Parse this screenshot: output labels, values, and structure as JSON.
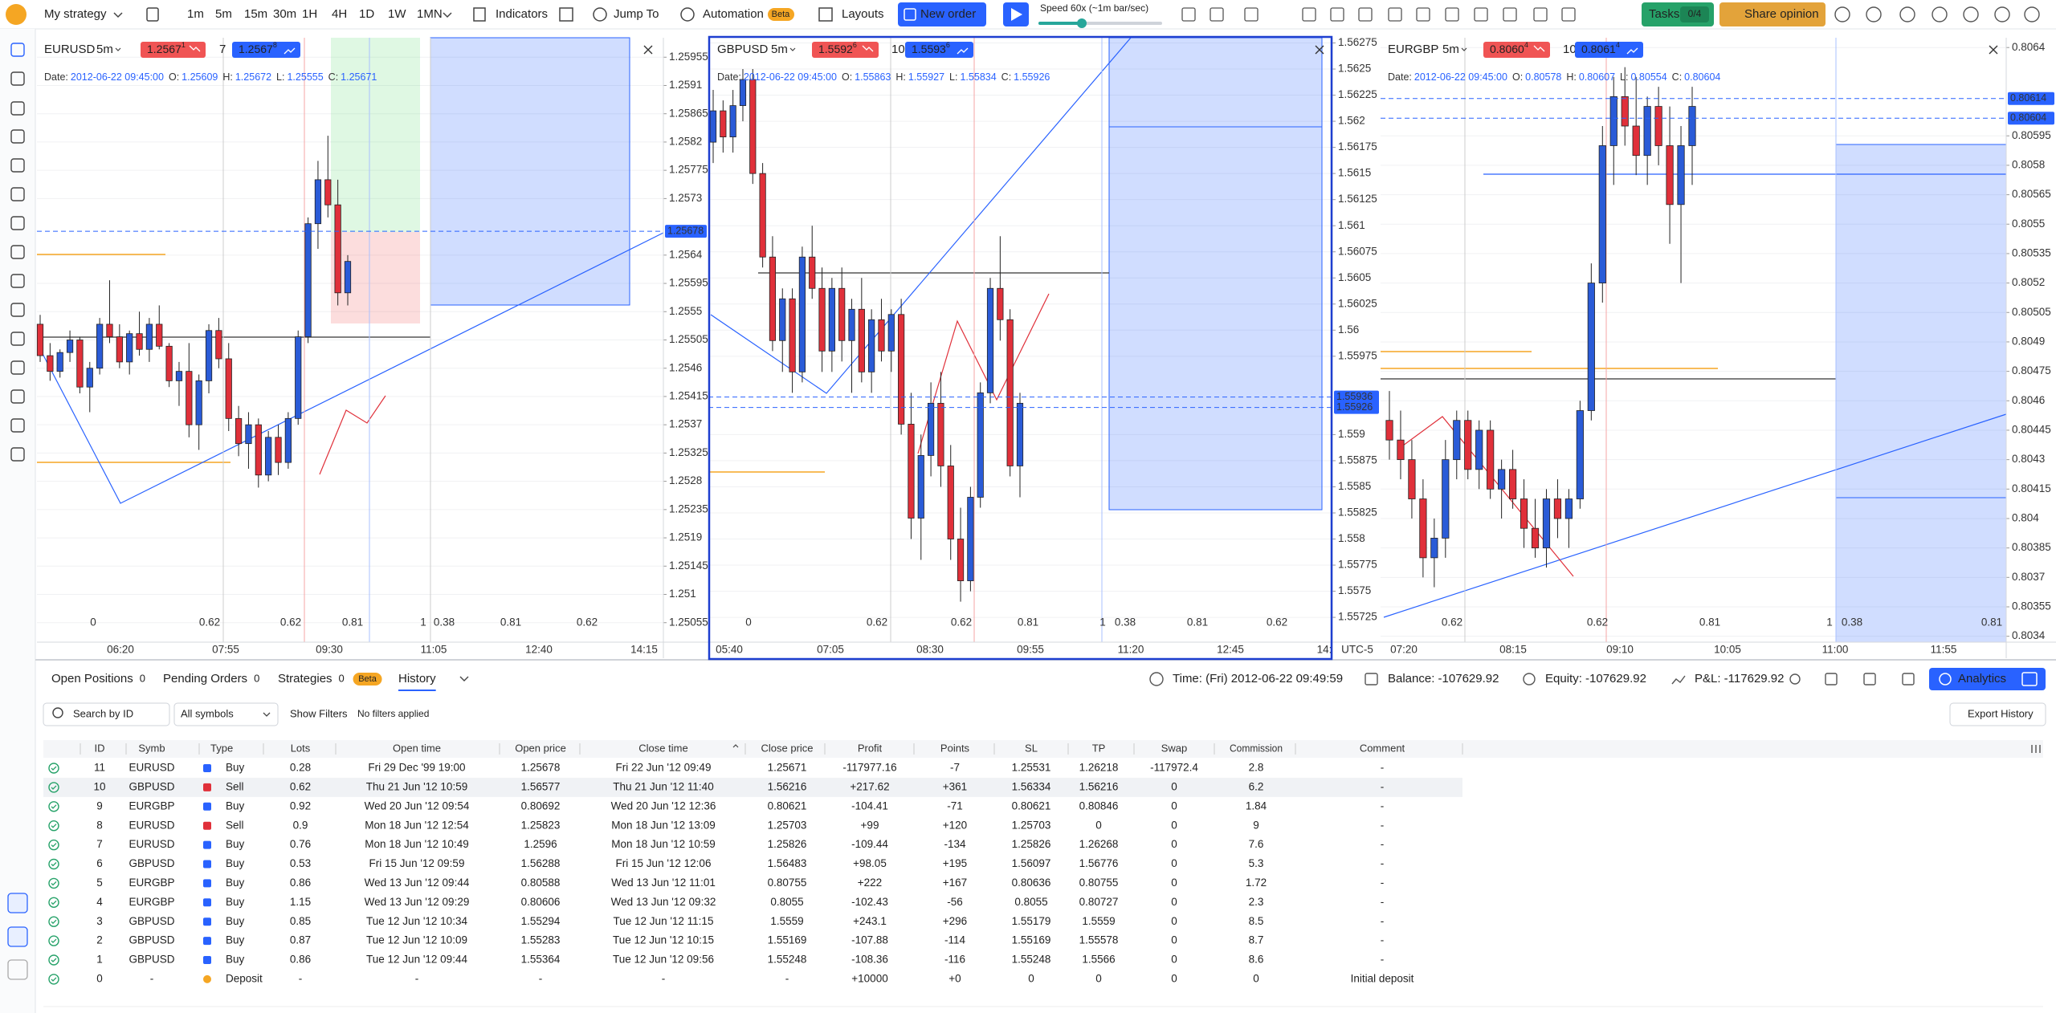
{
  "toolbar": {
    "strategy": "My strategy",
    "timeframes": [
      "1m",
      "5m",
      "15m",
      "30m",
      "1H",
      "4H",
      "1D",
      "1W",
      "1MN"
    ],
    "active_timeframe_index": 1,
    "indicators": "Indicators",
    "jump_to": "Jump To",
    "automation": "Automation",
    "beta": "Beta",
    "layouts": "Layouts",
    "new_order": "New order",
    "speed": "Speed 60x (~1m bar/sec)",
    "tasks": "Tasks",
    "tasks_count": "0/4",
    "share": "Share opinion"
  },
  "charts": [
    {
      "symbol": "EURUSD",
      "timeframe": "5m",
      "lot": "7",
      "sell": {
        "main": "1.2567",
        "pip": "1"
      },
      "buy": {
        "main": "1.2567",
        "pip": "8"
      },
      "ohlc": [
        [
          "Date:",
          "2012-06-22 09:45:00"
        ],
        [
          "O:",
          "1.25609"
        ],
        [
          "H:",
          "1.25672"
        ],
        [
          "L:",
          "1.25555"
        ],
        [
          "C:",
          "1.25671"
        ]
      ],
      "ylim": [
        1.25024,
        1.25986
      ],
      "yticks": [
        1.25955,
        1.2591,
        1.25865,
        1.2582,
        1.25775,
        1.2573,
        1.2564,
        1.25595,
        1.2555,
        1.25505,
        1.2546,
        1.25415,
        1.2537,
        1.25325,
        1.2528,
        1.25235,
        1.2519,
        1.25145,
        1.251,
        1.25055
      ],
      "price_labels": [
        1.25678
      ],
      "times": [
        "06:20",
        "07:55",
        "09:30",
        "11:05",
        "12:40",
        "14:15"
      ],
      "levels": [
        {
          "text": "0",
          "color": "#555"
        },
        {
          "text": "0.62",
          "color": "#e0303a"
        },
        {
          "text": "0.62",
          "color": "#e0303a"
        },
        {
          "text": "0.81",
          "color": "#2962ff"
        },
        {
          "text": "1",
          "color": "#2962ff"
        },
        {
          "text": "0.38",
          "color": "#777"
        },
        {
          "text": "0.81",
          "color": "#f59e0b"
        },
        {
          "text": "0.62",
          "color": "#777"
        }
      ],
      "candles": [
        [
          1.2553,
          1.25545,
          1.2547,
          1.2548
        ],
        [
          1.2548,
          1.255,
          1.2544,
          1.25455
        ],
        [
          1.25455,
          1.2549,
          1.25445,
          1.25485
        ],
        [
          1.25485,
          1.2552,
          1.2547,
          1.25505
        ],
        [
          1.25505,
          1.2551,
          1.2542,
          1.2543
        ],
        [
          1.2543,
          1.2547,
          1.2539,
          1.2546
        ],
        [
          1.2546,
          1.2554,
          1.2545,
          1.2553
        ],
        [
          1.2553,
          1.256,
          1.255,
          1.2551
        ],
        [
          1.2551,
          1.2553,
          1.2546,
          1.2547
        ],
        [
          1.2547,
          1.2552,
          1.2545,
          1.25515
        ],
        [
          1.25515,
          1.2555,
          1.2548,
          1.2549
        ],
        [
          1.2549,
          1.2554,
          1.2547,
          1.2553
        ],
        [
          1.2553,
          1.2556,
          1.2549,
          1.25495
        ],
        [
          1.25495,
          1.255,
          1.2543,
          1.2544
        ],
        [
          1.2544,
          1.2547,
          1.254,
          1.25455
        ],
        [
          1.25455,
          1.255,
          1.2535,
          1.2537
        ],
        [
          1.2537,
          1.2545,
          1.2533,
          1.2544
        ],
        [
          1.2544,
          1.2553,
          1.2542,
          1.2552
        ],
        [
          1.2552,
          1.2554,
          1.2546,
          1.25475
        ],
        [
          1.25475,
          1.255,
          1.2536,
          1.2538
        ],
        [
          1.2538,
          1.254,
          1.2532,
          1.2534
        ],
        [
          1.2534,
          1.2539,
          1.253,
          1.2537
        ],
        [
          1.2537,
          1.2538,
          1.2527,
          1.2529
        ],
        [
          1.2529,
          1.2536,
          1.2528,
          1.2535
        ],
        [
          1.2535,
          1.2537,
          1.2529,
          1.2531
        ],
        [
          1.2531,
          1.2539,
          1.253,
          1.2538
        ],
        [
          1.2538,
          1.2552,
          1.2537,
          1.2551
        ],
        [
          1.2551,
          1.257,
          1.255,
          1.2569
        ],
        [
          1.2569,
          1.2579,
          1.2565,
          1.2576
        ],
        [
          1.2576,
          1.2583,
          1.257,
          1.2572
        ],
        [
          1.2572,
          1.2576,
          1.2556,
          1.2558
        ],
        [
          1.2558,
          1.2564,
          1.2556,
          1.2563
        ]
      ]
    },
    {
      "symbol": "GBPUSD",
      "timeframe": "5m",
      "lot": "10",
      "sell": {
        "main": "1.5592",
        "pip": "6"
      },
      "buy": {
        "main": "1.5593",
        "pip": "6"
      },
      "ohlc": [
        [
          "Date:",
          "2012-06-22 09:45:00"
        ],
        [
          "O:",
          "1.55863"
        ],
        [
          "H:",
          "1.55927"
        ],
        [
          "L:",
          "1.55834"
        ],
        [
          "C:",
          "1.55926"
        ]
      ],
      "ylim": [
        1.5570125,
        1.5628
      ],
      "yticks": [
        1.56275,
        1.5625,
        1.56225,
        1.562,
        1.56175,
        1.5615,
        1.56125,
        1.561,
        1.56075,
        1.5605,
        1.56025,
        1.56,
        1.55975,
        1.559,
        1.55875,
        1.5585,
        1.55825,
        1.558,
        1.55775,
        1.5575,
        1.55725
      ],
      "price_labels": [
        1.55936,
        1.55926
      ],
      "times": [
        "05:40",
        "07:05",
        "08:30",
        "09:55",
        "11:20",
        "12:45",
        "14:"
      ],
      "timezone": "UTC-5",
      "levels": [
        {
          "text": "0",
          "color": "#555"
        },
        {
          "text": "0.62",
          "color": "#777"
        },
        {
          "text": "0.62",
          "color": "#e0303a"
        },
        {
          "text": "0.81",
          "color": "#2962ff"
        },
        {
          "text": "1",
          "color": "#2962ff"
        },
        {
          "text": "0.38",
          "color": "#777"
        },
        {
          "text": "0.81",
          "color": "#f59e0b"
        },
        {
          "text": "0.62",
          "color": "#777"
        }
      ],
      "candles": [
        [
          1.5618,
          1.5623,
          1.5616,
          1.5621
        ],
        [
          1.5621,
          1.5622,
          1.5617,
          1.56185
        ],
        [
          1.56185,
          1.5623,
          1.5617,
          1.56215
        ],
        [
          1.56215,
          1.5625,
          1.562,
          1.5624
        ],
        [
          1.5624,
          1.5625,
          1.5614,
          1.5615
        ],
        [
          1.5615,
          1.5616,
          1.5606,
          1.5607
        ],
        [
          1.5607,
          1.5609,
          1.5598,
          1.5599
        ],
        [
          1.5599,
          1.5604,
          1.5596,
          1.5603
        ],
        [
          1.5603,
          1.5604,
          1.5594,
          1.5596
        ],
        [
          1.5596,
          1.5608,
          1.5595,
          1.5607
        ],
        [
          1.5607,
          1.561,
          1.5603,
          1.5604
        ],
        [
          1.5604,
          1.5606,
          1.5596,
          1.5598
        ],
        [
          1.5598,
          1.5605,
          1.5596,
          1.5604
        ],
        [
          1.5604,
          1.5606,
          1.5597,
          1.5599
        ],
        [
          1.5599,
          1.5603,
          1.5594,
          1.5602
        ],
        [
          1.5602,
          1.5605,
          1.5595,
          1.5596
        ],
        [
          1.5596,
          1.5602,
          1.5594,
          1.5601
        ],
        [
          1.5601,
          1.5603,
          1.5597,
          1.5598
        ],
        [
          1.5598,
          1.5602,
          1.5596,
          1.56015
        ],
        [
          1.56015,
          1.5603,
          1.559,
          1.5591
        ],
        [
          1.5591,
          1.5594,
          1.558,
          1.5582
        ],
        [
          1.5582,
          1.559,
          1.5578,
          1.5588
        ],
        [
          1.5588,
          1.5595,
          1.5586,
          1.5593
        ],
        [
          1.5593,
          1.5596,
          1.5585,
          1.5587
        ],
        [
          1.5587,
          1.5589,
          1.5578,
          1.558
        ],
        [
          1.558,
          1.5583,
          1.5574,
          1.5576
        ],
        [
          1.5576,
          1.5585,
          1.5575,
          1.5584
        ],
        [
          1.5584,
          1.5595,
          1.5583,
          1.5594
        ],
        [
          1.5594,
          1.5605,
          1.5593,
          1.5604
        ],
        [
          1.5604,
          1.5609,
          1.5599,
          1.5601
        ],
        [
          1.5601,
          1.5602,
          1.5586,
          1.5587
        ],
        [
          1.5587,
          1.5594,
          1.5584,
          1.5593
        ]
      ]
    },
    {
      "symbol": "EURGBP",
      "timeframe": "5m",
      "lot": "10",
      "sell": {
        "main": "0.8060",
        "pip": "4"
      },
      "buy": {
        "main": "0.8061",
        "pip": "4"
      },
      "ohlc": [
        [
          "Date:",
          "2012-06-22 09:45:00"
        ],
        [
          "O:",
          "0.80578"
        ],
        [
          "H:",
          "0.80607"
        ],
        [
          "L:",
          "0.80554"
        ],
        [
          "C:",
          "0.80604"
        ]
      ],
      "ylim": [
        0.80337,
        0.80645
      ],
      "yticks": [
        0.8064,
        0.80595,
        0.8058,
        0.80565,
        0.8055,
        0.80535,
        0.8052,
        0.80505,
        0.8049,
        0.80475,
        0.8046,
        0.80445,
        0.8043,
        0.80415,
        0.804,
        0.80385,
        0.8037,
        0.80355,
        0.8034
      ],
      "price_labels": [
        0.80614,
        0.80604
      ],
      "times": [
        "07:20",
        "08:15",
        "09:10",
        "10:05",
        "11:00",
        "11:55"
      ],
      "levels": [
        {
          "text": "0.62",
          "color": "#777"
        },
        {
          "text": "0.62",
          "color": "#e0303a"
        },
        {
          "text": "0.81",
          "color": "#2962ff"
        },
        {
          "text": "1",
          "color": "#2962ff"
        },
        {
          "text": "0.38",
          "color": "#777"
        },
        {
          "text": "0.81",
          "color": "#f59e0b"
        }
      ],
      "candles": [
        [
          0.8045,
          0.80465,
          0.8043,
          0.8044
        ],
        [
          0.8044,
          0.80455,
          0.8042,
          0.8043
        ],
        [
          0.8043,
          0.8044,
          0.804,
          0.8041
        ],
        [
          0.8041,
          0.8042,
          0.8037,
          0.8038
        ],
        [
          0.8038,
          0.804,
          0.80365,
          0.8039
        ],
        [
          0.8039,
          0.8044,
          0.8038,
          0.8043
        ],
        [
          0.8043,
          0.80455,
          0.8042,
          0.8045
        ],
        [
          0.8045,
          0.80455,
          0.8042,
          0.80425
        ],
        [
          0.80425,
          0.8045,
          0.80415,
          0.80445
        ],
        [
          0.80445,
          0.8045,
          0.8041,
          0.80415
        ],
        [
          0.80415,
          0.8043,
          0.804,
          0.80425
        ],
        [
          0.80425,
          0.80435,
          0.80405,
          0.8041
        ],
        [
          0.8041,
          0.8042,
          0.80385,
          0.80395
        ],
        [
          0.80395,
          0.8041,
          0.8038,
          0.80385
        ],
        [
          0.80385,
          0.80415,
          0.80375,
          0.8041
        ],
        [
          0.8041,
          0.8042,
          0.8039,
          0.804
        ],
        [
          0.804,
          0.80415,
          0.80385,
          0.8041
        ],
        [
          0.8041,
          0.8046,
          0.80405,
          0.80455
        ],
        [
          0.80455,
          0.8053,
          0.8045,
          0.8052
        ],
        [
          0.8052,
          0.806,
          0.8051,
          0.8059
        ],
        [
          0.8059,
          0.80625,
          0.8057,
          0.80615
        ],
        [
          0.80615,
          0.8063,
          0.8059,
          0.806
        ],
        [
          0.806,
          0.80625,
          0.80575,
          0.80585
        ],
        [
          0.80585,
          0.80615,
          0.8057,
          0.8061
        ],
        [
          0.8061,
          0.8062,
          0.8058,
          0.8059
        ],
        [
          0.8059,
          0.8061,
          0.8054,
          0.8056
        ],
        [
          0.8056,
          0.806,
          0.8052,
          0.8059
        ],
        [
          0.8059,
          0.8062,
          0.8057,
          0.8061
        ]
      ]
    }
  ],
  "tabs": [
    {
      "label": "Open Positions",
      "count": "0"
    },
    {
      "label": "Pending Orders",
      "count": "0"
    },
    {
      "label": "Strategies",
      "count": "0",
      "badge": "Beta"
    },
    {
      "label": "History"
    }
  ],
  "status": {
    "time": "Time: (Fri) 2012-06-22 09:49:59",
    "balance": "Balance: -107629.92",
    "equity": "Equity: -107629.92",
    "pnl": "P&L: -117629.92",
    "analytics": "Analytics"
  },
  "filters": {
    "search": "Search by ID",
    "symbols": "All symbols",
    "show": "Show Filters",
    "none": "No filters applied",
    "export": "Export History"
  },
  "table": {
    "columns": [
      "ID",
      "Symb",
      "Type",
      "Lots",
      "Open time",
      "Open price",
      "Close time",
      "Close price",
      "Profit",
      "Points",
      "SL",
      "TP",
      "Swap",
      "Commission",
      "Comment"
    ],
    "rows": [
      [
        "11",
        "EURUSD",
        "Buy",
        "0.28",
        "Fri 29 Dec '99 19:00",
        "1.25678",
        "Fri 22 Jun '12 09:49",
        "1.25671",
        "-117977.16",
        "-7",
        "1.25531",
        "1.26218",
        "-117972.4",
        "2.8",
        "-"
      ],
      [
        "10",
        "GBPUSD",
        "Sell",
        "0.62",
        "Thu 21 Jun '12 10:59",
        "1.56577",
        "Thu 21 Jun '12 11:40",
        "1.56216",
        "+217.62",
        "+361",
        "1.56334",
        "1.56216",
        "0",
        "6.2",
        "-"
      ],
      [
        "9",
        "EURGBP",
        "Buy",
        "0.92",
        "Wed 20 Jun '12 09:54",
        "0.80692",
        "Wed 20 Jun '12 12:36",
        "0.80621",
        "-104.41",
        "-71",
        "0.80621",
        "0.80846",
        "0",
        "1.84",
        "-"
      ],
      [
        "8",
        "EURUSD",
        "Sell",
        "0.9",
        "Mon 18 Jun '12 12:54",
        "1.25823",
        "Mon 18 Jun '12 13:09",
        "1.25703",
        "+99",
        "+120",
        "1.25703",
        "0",
        "0",
        "9",
        "-"
      ],
      [
        "7",
        "EURUSD",
        "Buy",
        "0.76",
        "Mon 18 Jun '12 10:49",
        "1.2596",
        "Mon 18 Jun '12 10:59",
        "1.25826",
        "-109.44",
        "-134",
        "1.25826",
        "1.26268",
        "0",
        "7.6",
        "-"
      ],
      [
        "6",
        "GBPUSD",
        "Buy",
        "0.53",
        "Fri 15 Jun '12 09:59",
        "1.56288",
        "Fri 15 Jun '12 12:06",
        "1.56483",
        "+98.05",
        "+195",
        "1.56097",
        "1.56776",
        "0",
        "5.3",
        "-"
      ],
      [
        "5",
        "EURGBP",
        "Buy",
        "0.86",
        "Wed 13 Jun '12 09:44",
        "0.80588",
        "Wed 13 Jun '12 11:01",
        "0.80755",
        "+222",
        "+167",
        "0.80636",
        "0.80755",
        "0",
        "1.72",
        "-"
      ],
      [
        "4",
        "EURGBP",
        "Buy",
        "1.15",
        "Wed 13 Jun '12 09:29",
        "0.80606",
        "Wed 13 Jun '12 09:32",
        "0.8055",
        "-102.43",
        "-56",
        "0.8055",
        "0.80727",
        "0",
        "2.3",
        "-"
      ],
      [
        "3",
        "GBPUSD",
        "Buy",
        "0.85",
        "Tue 12 Jun '12 10:34",
        "1.55294",
        "Tue 12 Jun '12 11:15",
        "1.5559",
        "+243.1",
        "+296",
        "1.55179",
        "1.5559",
        "0",
        "8.5",
        "-"
      ],
      [
        "2",
        "GBPUSD",
        "Buy",
        "0.87",
        "Tue 12 Jun '12 10:09",
        "1.55283",
        "Tue 12 Jun '12 10:15",
        "1.55169",
        "-107.88",
        "-114",
        "1.55169",
        "1.55578",
        "0",
        "8.7",
        "-"
      ],
      [
        "1",
        "GBPUSD",
        "Buy",
        "0.86",
        "Tue 12 Jun '12 09:44",
        "1.55364",
        "Tue 12 Jun '12 09:56",
        "1.55248",
        "-108.36",
        "-116",
        "1.55248",
        "1.5566",
        "0",
        "8.6",
        "-"
      ],
      [
        "0",
        "-",
        "Deposit",
        "-",
        "-",
        "-",
        "-",
        "-",
        "+10000",
        "+0",
        "0",
        "0",
        "0",
        "0",
        "Initial deposit"
      ]
    ]
  }
}
